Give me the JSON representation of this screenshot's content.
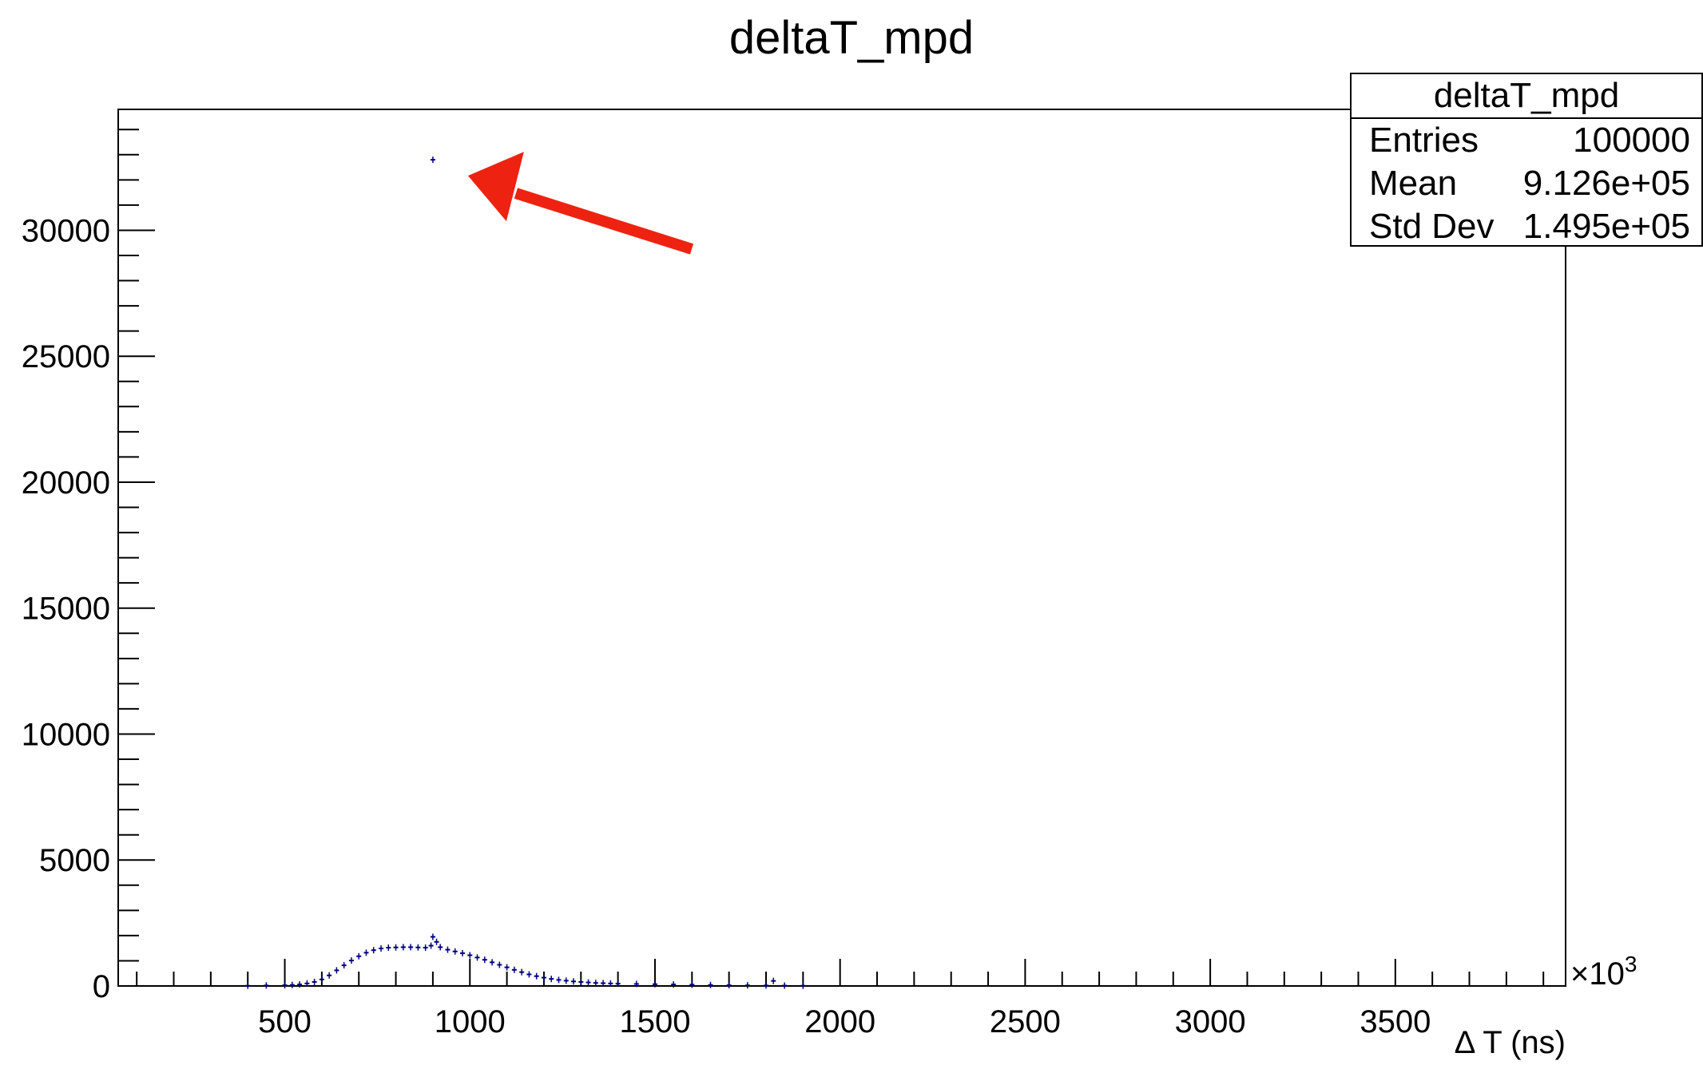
{
  "title": "deltaT_mpd",
  "stats": {
    "title": "deltaT_mpd",
    "rows": [
      {
        "label": "Entries",
        "value": "100000"
      },
      {
        "label": "Mean",
        "value": "9.126e+05"
      },
      {
        "label": "Std Dev",
        "value": "1.495e+05"
      }
    ]
  },
  "chart_data": {
    "type": "line",
    "title": "deltaT_mpd",
    "xlabel": "Δ T (ns)",
    "ylabel": "",
    "x_exponent_label": "×10",
    "x_exponent": "3",
    "xlim": [
      50,
      3960
    ],
    "ylim": [
      0,
      34800
    ],
    "xticks": [
      500,
      1000,
      1500,
      2000,
      2500,
      3000,
      3500
    ],
    "yticks": [
      0,
      5000,
      10000,
      15000,
      20000,
      25000,
      30000
    ],
    "xticklabels": [
      "500",
      "1000",
      "1500",
      "2000",
      "2500",
      "3000",
      "3500"
    ],
    "yticklabels": [
      "0",
      "5000",
      "10000",
      "15000",
      "20000",
      "25000",
      "30000"
    ],
    "grid": false,
    "color": "#000080",
    "series": [
      {
        "x": [
          400,
          450,
          500,
          520,
          540,
          560,
          580,
          600,
          620,
          640,
          660,
          680,
          700,
          720,
          740,
          760,
          780,
          800,
          820,
          840,
          860,
          880,
          895,
          900,
          910,
          920,
          940,
          960,
          980,
          1000,
          1020,
          1040,
          1060,
          1080,
          1100,
          1120,
          1140,
          1160,
          1180,
          1200,
          1220,
          1240,
          1260,
          1280,
          1300,
          1320,
          1340,
          1360,
          1380,
          1400,
          1450,
          1500,
          1550,
          1600,
          1650,
          1700,
          1750,
          1800,
          1820,
          1850,
          1900
        ],
        "y": [
          10,
          20,
          30,
          40,
          60,
          100,
          160,
          260,
          420,
          620,
          820,
          1010,
          1180,
          1320,
          1420,
          1490,
          1520,
          1530,
          1540,
          1540,
          1530,
          1520,
          1600,
          1950,
          1750,
          1540,
          1440,
          1370,
          1300,
          1220,
          1130,
          1040,
          940,
          840,
          740,
          640,
          550,
          460,
          390,
          330,
          280,
          240,
          210,
          180,
          160,
          140,
          120,
          110,
          100,
          90,
          80,
          70,
          60,
          50,
          40,
          30,
          25,
          20,
          200,
          15,
          10
        ]
      },
      {
        "name": "",
        "x": [
          900
        ],
        "y": [
          32800
        ]
      }
    ],
    "annotations": [
      {
        "type": "arrow",
        "color": "#ee2211",
        "points_to": {
          "x": 900,
          "y": 32800
        }
      }
    ]
  }
}
